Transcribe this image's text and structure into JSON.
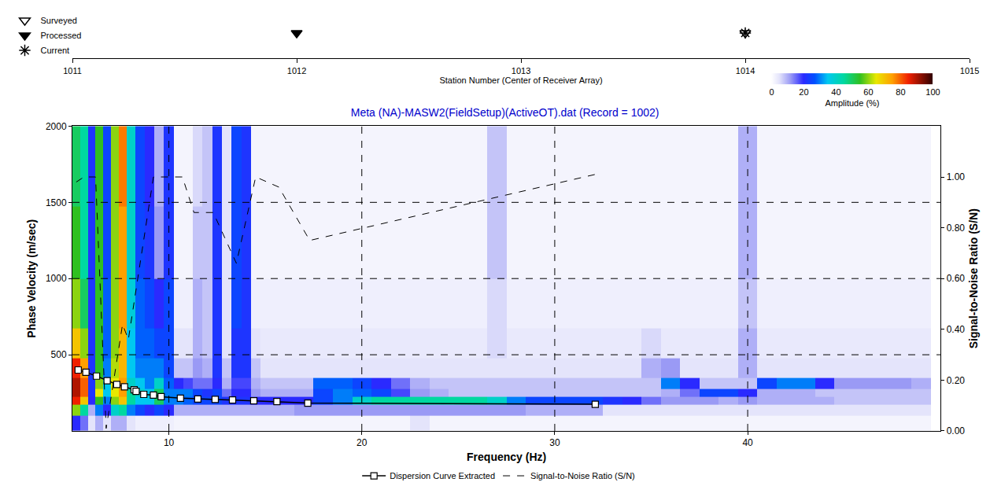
{
  "chart_data": {
    "type": "heatmap",
    "title": "Meta (NA)-MASW2(FieldSetup)(ActiveOT).dat (Record = 1002)",
    "x_label": "Frequency (Hz)",
    "y_label": "Phase Velocity (m/sec)",
    "y2_label": "Signal-to-Noise Ratio (S/N)",
    "xlim": [
      5,
      50
    ],
    "xticks": [
      10,
      20,
      30,
      40
    ],
    "ylim": [
      0,
      2000
    ],
    "yticks": [
      500,
      1000,
      1500,
      2000
    ],
    "y2lim": [
      0,
      1.2
    ],
    "y2ticks": [
      {
        "value": 0,
        "label": "0.00"
      },
      {
        "value": 0.2,
        "label": "0.20"
      },
      {
        "value": 0.4,
        "label": "0.40"
      },
      {
        "value": 0.6,
        "label": "0.60"
      },
      {
        "value": 0.8,
        "label": "0.80"
      },
      {
        "value": 1,
        "label": "1.00"
      }
    ],
    "grid": true,
    "legend": "bottom",
    "heatmap": {
      "colorbar_label": "Amplitude (%)",
      "zlim": [
        0,
        100
      ],
      "zticks": [
        0,
        20,
        40,
        60,
        80,
        100
      ],
      "x": [
        5.2,
        5.6,
        6.0,
        6.4,
        6.8,
        7.2,
        7.6,
        8.0,
        8.5,
        9.0,
        9.5,
        10,
        10.5,
        11,
        11.5,
        12,
        12.5,
        13,
        13.5,
        14,
        14.5,
        15,
        16,
        17,
        18,
        19,
        20,
        21,
        22,
        23,
        24,
        25,
        26,
        27,
        28,
        29,
        30,
        31,
        32,
        33,
        34,
        35,
        36,
        37,
        38,
        39,
        40,
        41,
        42,
        43,
        44,
        45,
        46,
        47,
        48,
        49
      ],
      "y": [
        50,
        150,
        200,
        250,
        300,
        400,
        550,
        800,
        1200,
        1750
      ],
      "z": [
        [
          20,
          15,
          5,
          10,
          5,
          10,
          10,
          5,
          3,
          3,
          3,
          3,
          2,
          2,
          2,
          2,
          2,
          2,
          2,
          2,
          2,
          2,
          2,
          2,
          2,
          2,
          2,
          2,
          2,
          5,
          2,
          2,
          2,
          2,
          2,
          2,
          2,
          2,
          2,
          2,
          2,
          2,
          2,
          2,
          2,
          2,
          2,
          2,
          2,
          2,
          2,
          2,
          2,
          2,
          2,
          2
        ],
        [
          60,
          45,
          10,
          30,
          20,
          40,
          45,
          30,
          25,
          20,
          25,
          20,
          10,
          10,
          10,
          10,
          10,
          10,
          10,
          10,
          10,
          10,
          10,
          12,
          12,
          12,
          12,
          12,
          12,
          12,
          12,
          12,
          12,
          12,
          12,
          10,
          10,
          10,
          10,
          5,
          5,
          5,
          5,
          5,
          5,
          5,
          5,
          5,
          5,
          5,
          5,
          5,
          5,
          5,
          5,
          5
        ],
        [
          85,
          70,
          20,
          55,
          30,
          60,
          70,
          45,
          35,
          35,
          50,
          30,
          30,
          28,
          25,
          25,
          25,
          22,
          22,
          22,
          20,
          20,
          20,
          20,
          25,
          30,
          40,
          45,
          45,
          45,
          45,
          45,
          45,
          40,
          30,
          25,
          25,
          25,
          25,
          22,
          20,
          15,
          12,
          12,
          12,
          10,
          12,
          10,
          10,
          10,
          10,
          8,
          8,
          8,
          8,
          8
        ],
        [
          90,
          80,
          22,
          65,
          35,
          65,
          75,
          45,
          40,
          35,
          50,
          30,
          30,
          30,
          25,
          22,
          25,
          15,
          20,
          20,
          12,
          10,
          10,
          10,
          25,
          30,
          28,
          25,
          18,
          12,
          10,
          8,
          8,
          8,
          8,
          8,
          8,
          8,
          8,
          8,
          8,
          8,
          10,
          15,
          25,
          25,
          20,
          10,
          10,
          10,
          8,
          8,
          8,
          8,
          8,
          8
        ],
        [
          90,
          80,
          22,
          60,
          35,
          65,
          75,
          40,
          35,
          30,
          40,
          28,
          20,
          18,
          15,
          15,
          20,
          10,
          18,
          18,
          10,
          8,
          8,
          8,
          28,
          28,
          25,
          20,
          15,
          10,
          8,
          8,
          8,
          8,
          8,
          8,
          8,
          8,
          8,
          8,
          8,
          8,
          30,
          20,
          8,
          8,
          8,
          25,
          30,
          30,
          20,
          12,
          12,
          12,
          12,
          10
        ],
        [
          85,
          75,
          22,
          55,
          30,
          62,
          72,
          35,
          30,
          30,
          30,
          25,
          8,
          8,
          12,
          10,
          22,
          8,
          22,
          22,
          8,
          5,
          5,
          5,
          5,
          5,
          5,
          5,
          5,
          5,
          5,
          5,
          5,
          5,
          5,
          5,
          5,
          5,
          5,
          5,
          5,
          10,
          12,
          5,
          5,
          5,
          10,
          5,
          5,
          5,
          5,
          5,
          5,
          5,
          5,
          5
        ],
        [
          70,
          60,
          22,
          55,
          28,
          60,
          72,
          35,
          28,
          28,
          25,
          25,
          5,
          5,
          10,
          8,
          22,
          5,
          22,
          22,
          5,
          4,
          4,
          4,
          4,
          4,
          4,
          4,
          4,
          4,
          4,
          4,
          4,
          6,
          4,
          4,
          4,
          4,
          4,
          4,
          4,
          6,
          4,
          4,
          4,
          4,
          10,
          4,
          4,
          4,
          4,
          4,
          4,
          4,
          4,
          4
        ],
        [
          60,
          50,
          22,
          55,
          28,
          60,
          75,
          38,
          28,
          25,
          20,
          25,
          3,
          3,
          10,
          8,
          22,
          5,
          25,
          22,
          3,
          3,
          3,
          3,
          3,
          3,
          3,
          3,
          3,
          3,
          3,
          3,
          3,
          6,
          3,
          3,
          3,
          3,
          3,
          3,
          3,
          3,
          3,
          3,
          3,
          3,
          8,
          3,
          3,
          3,
          3,
          3,
          3,
          3,
          3,
          3
        ],
        [
          55,
          45,
          22,
          55,
          25,
          60,
          75,
          40,
          25,
          22,
          12,
          22,
          2,
          2,
          8,
          8,
          22,
          5,
          25,
          22,
          2,
          2,
          2,
          2,
          2,
          2,
          2,
          2,
          2,
          2,
          2,
          2,
          2,
          8,
          2,
          2,
          2,
          2,
          2,
          2,
          2,
          2,
          2,
          2,
          2,
          2,
          10,
          2,
          2,
          2,
          2,
          2,
          2,
          2,
          2,
          2
        ],
        [
          50,
          45,
          22,
          55,
          25,
          60,
          78,
          40,
          25,
          20,
          10,
          22,
          2,
          2,
          6,
          8,
          22,
          5,
          25,
          22,
          2,
          2,
          2,
          2,
          2,
          2,
          2,
          2,
          2,
          2,
          2,
          2,
          2,
          8,
          2,
          2,
          2,
          2,
          2,
          2,
          2,
          2,
          2,
          2,
          2,
          2,
          10,
          2,
          2,
          2,
          2,
          2,
          2,
          2,
          2,
          2
        ]
      ]
    },
    "series": [
      {
        "name": "Dispersion Curve Extracted",
        "type": "line",
        "marker": "square",
        "color": "#000000",
        "x": [
          5.3,
          5.7,
          6.25,
          6.8,
          7.3,
          7.7,
          8.2,
          8.3,
          8.7,
          9.2,
          9.6,
          10.6,
          11.5,
          12.4,
          13.3,
          14.4,
          15.6,
          17.2,
          32.1
        ],
        "values": [
          400,
          385,
          360,
          330,
          305,
          290,
          270,
          260,
          240,
          235,
          225,
          215,
          210,
          207,
          203,
          198,
          193,
          183,
          175
        ]
      },
      {
        "name": "Signal-to-Noise Ratio (S/N)",
        "type": "line",
        "line_style": "dash",
        "color": "#000000",
        "axis": "y2",
        "x": [
          5.2,
          5.6,
          6.2,
          6.75,
          7.6,
          7.9,
          9.2,
          10.7,
          11.3,
          12.3,
          13.5,
          14.5,
          15.7,
          17.3,
          32.1
        ],
        "values": [
          0.98,
          1.0,
          1.0,
          0.01,
          0.42,
          0.36,
          1.0,
          1.0,
          0.86,
          0.86,
          0.66,
          1.0,
          0.96,
          0.75,
          1.01
        ]
      }
    ],
    "station_axis": {
      "label": "Station Number (Center of Receiver Array)",
      "xlim": [
        1011,
        1015
      ],
      "xticks": [
        1011,
        1012,
        1013,
        1014,
        1015
      ],
      "legend": "top-left",
      "series": [
        {
          "name": "Surveyed",
          "marker": "triangle-down-open",
          "color": "#000000",
          "x": [
            1014
          ]
        },
        {
          "name": "Processed",
          "marker": "triangle-down",
          "color": "#000000",
          "x": [
            1012
          ]
        },
        {
          "name": "Current",
          "marker": "asterisk",
          "color": "#000000",
          "x": [
            1014
          ]
        }
      ]
    }
  }
}
